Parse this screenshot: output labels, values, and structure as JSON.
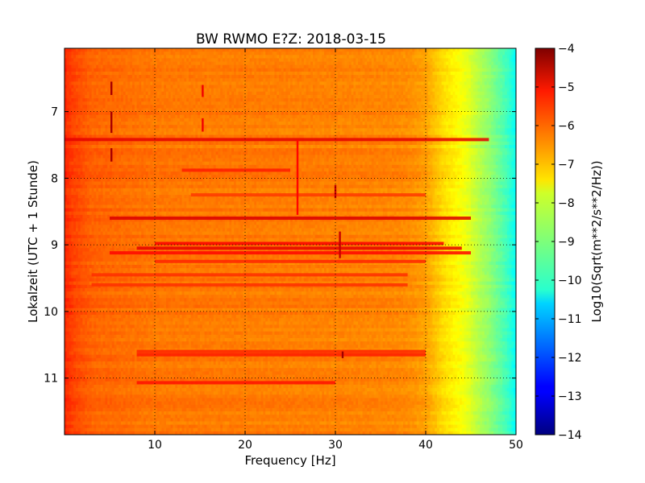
{
  "chart_data": {
    "type": "heatmap",
    "title": "BW RWMO E?Z: 2018-03-15",
    "xlabel": "Frequency [Hz]",
    "ylabel": "Lokalzeit (UTC + 1 Stunde)",
    "xlim": [
      0,
      50
    ],
    "ylim": [
      11.85,
      6.05
    ],
    "y_inverted": true,
    "x_ticks": [
      10,
      20,
      30,
      40,
      50
    ],
    "y_ticks": [
      7,
      8,
      9,
      10,
      11
    ],
    "grid": true,
    "colormap": "jet",
    "colorbar": {
      "label": "Log10(Sqrt(m**2/s**2/Hz))",
      "range": [
        -14,
        -4
      ],
      "ticks": [
        -4,
        -5,
        -6,
        -7,
        -8,
        -9,
        -10,
        -11,
        -12,
        -13,
        -14
      ]
    },
    "spectrum_profile": {
      "frequency_hz": [
        0,
        1,
        3,
        10,
        20,
        30,
        36,
        38,
        40,
        41,
        42,
        43,
        44,
        45,
        46,
        47,
        48,
        49,
        50
      ],
      "level_log10": [
        -5.6,
        -5.9,
        -6.2,
        -6.4,
        -6.45,
        -6.5,
        -6.55,
        -6.6,
        -6.8,
        -7.1,
        -7.4,
        -7.6,
        -7.8,
        -8.1,
        -8.5,
        -8.8,
        -9.2,
        -9.6,
        -10.2
      ]
    },
    "bands": [
      {
        "time": 7.42,
        "f_start": 0,
        "f_end": 47,
        "level": -5.0
      },
      {
        "time": 7.88,
        "f_start": 13,
        "f_end": 25,
        "level": -5.5
      },
      {
        "time": 8.25,
        "f_start": 14,
        "f_end": 40,
        "level": -5.8
      },
      {
        "time": 8.6,
        "f_start": 5,
        "f_end": 45,
        "level": -4.9
      },
      {
        "time": 8.98,
        "f_start": 10,
        "f_end": 42,
        "level": -5.2
      },
      {
        "time": 9.05,
        "f_start": 8,
        "f_end": 44,
        "level": -5.0
      },
      {
        "time": 9.12,
        "f_start": 5,
        "f_end": 45,
        "level": -5.3
      },
      {
        "time": 9.25,
        "f_start": 10,
        "f_end": 40,
        "level": -5.6
      },
      {
        "time": 9.45,
        "f_start": 3,
        "f_end": 38,
        "level": -5.7
      },
      {
        "time": 9.6,
        "f_start": 3,
        "f_end": 38,
        "level": -5.7
      },
      {
        "time": 10.6,
        "f_start": 8,
        "f_end": 40,
        "level": -5.6
      },
      {
        "time": 10.65,
        "f_start": 8,
        "f_end": 40,
        "level": -5.5
      },
      {
        "time": 11.07,
        "f_start": 8,
        "f_end": 30,
        "level": -5.4
      }
    ],
    "spikes": [
      {
        "freq": 5.2,
        "t_start": 6.55,
        "t_end": 6.75,
        "level": -4.4
      },
      {
        "freq": 5.2,
        "t_start": 7.0,
        "t_end": 7.32,
        "level": -4.4
      },
      {
        "freq": 5.2,
        "t_start": 7.55,
        "t_end": 7.75,
        "level": -4.4
      },
      {
        "freq": 15.3,
        "t_start": 6.6,
        "t_end": 6.78,
        "level": -5.1
      },
      {
        "freq": 15.3,
        "t_start": 7.1,
        "t_end": 7.3,
        "level": -5.1
      },
      {
        "freq": 25.8,
        "t_start": 7.42,
        "t_end": 8.55,
        "level": -5.3
      },
      {
        "freq": 30.0,
        "t_start": 8.1,
        "t_end": 8.3,
        "level": -4.7
      },
      {
        "freq": 30.5,
        "t_start": 8.8,
        "t_end": 9.2,
        "level": -4.7
      },
      {
        "freq": 30.8,
        "t_start": 10.6,
        "t_end": 10.7,
        "level": -4.3
      }
    ]
  }
}
